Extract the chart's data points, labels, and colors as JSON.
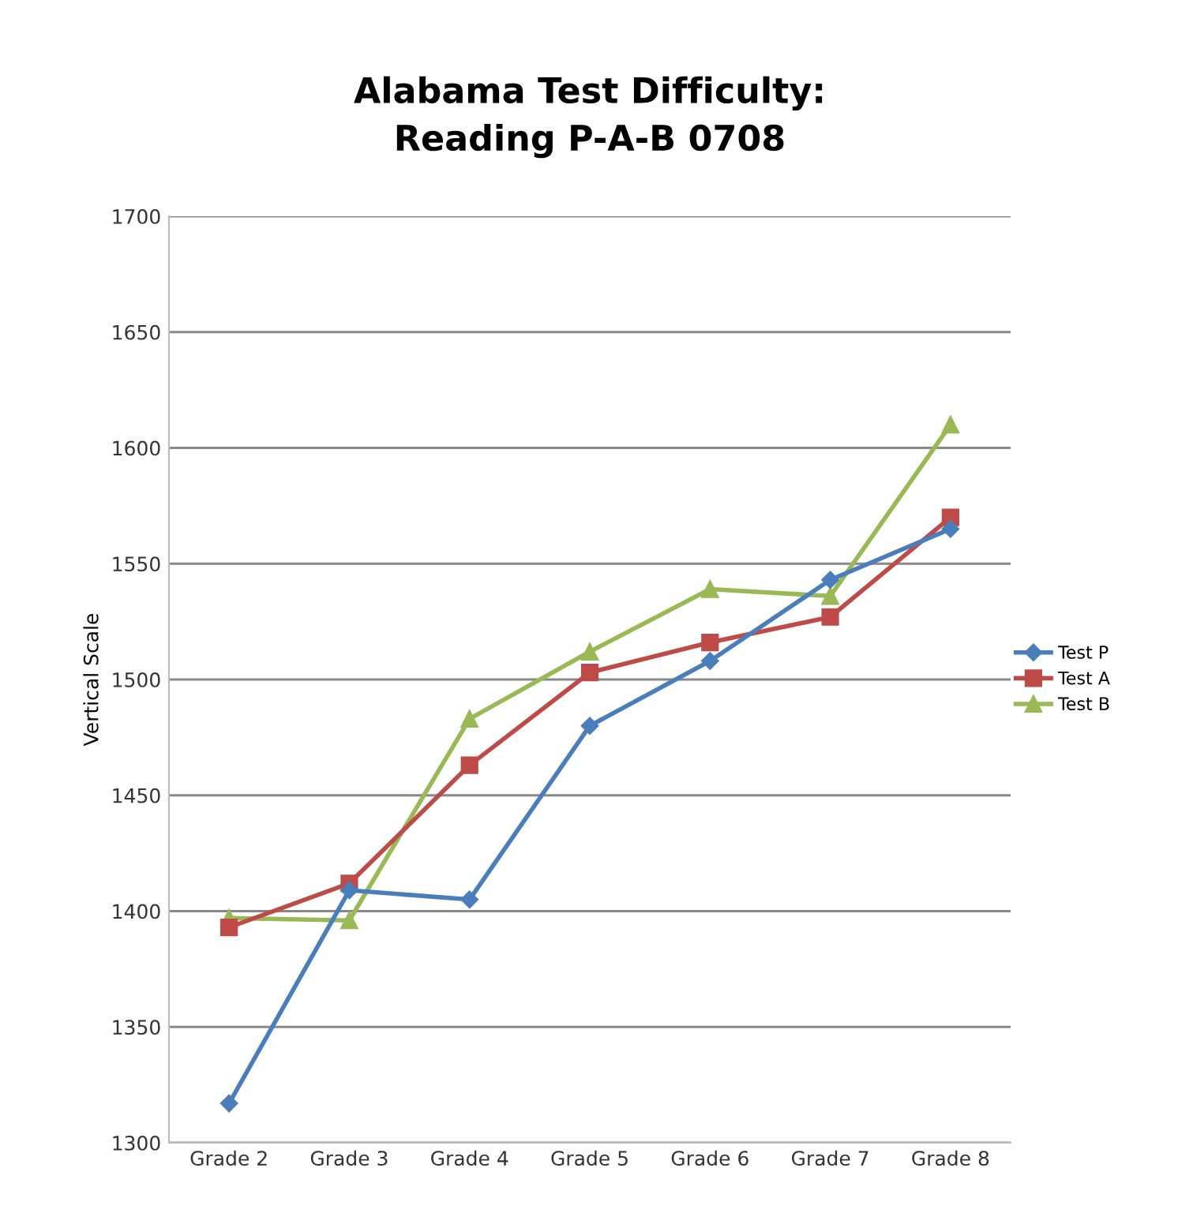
{
  "chart_data": {
    "type": "line",
    "title": "Alabama Test Difficulty:\nReading P-A-B 0708",
    "ylabel": "Vertical Scale",
    "categories": [
      "Grade 2",
      "Grade 3",
      "Grade 4",
      "Grade 5",
      "Grade 6",
      "Grade 7",
      "Grade 8"
    ],
    "series": [
      {
        "name": "Test P",
        "color": "#4a7ebb",
        "marker": "diamond",
        "values": [
          1317,
          1409,
          1405,
          1480,
          1508,
          1543,
          1565
        ]
      },
      {
        "name": "Test A",
        "color": "#be4b48",
        "marker": "square",
        "values": [
          1393,
          1412,
          1463,
          1503,
          1516,
          1527,
          1570
        ]
      },
      {
        "name": "Test B",
        "color": "#98b954",
        "marker": "triangle",
        "values": [
          1397,
          1396,
          1483,
          1512,
          1539,
          1536,
          1610
        ]
      }
    ],
    "ylim": [
      1300,
      1700
    ],
    "yticks": [
      1300,
      1350,
      1400,
      1450,
      1500,
      1550,
      1600,
      1650,
      1700
    ],
    "grid": "y",
    "legend": "right"
  }
}
